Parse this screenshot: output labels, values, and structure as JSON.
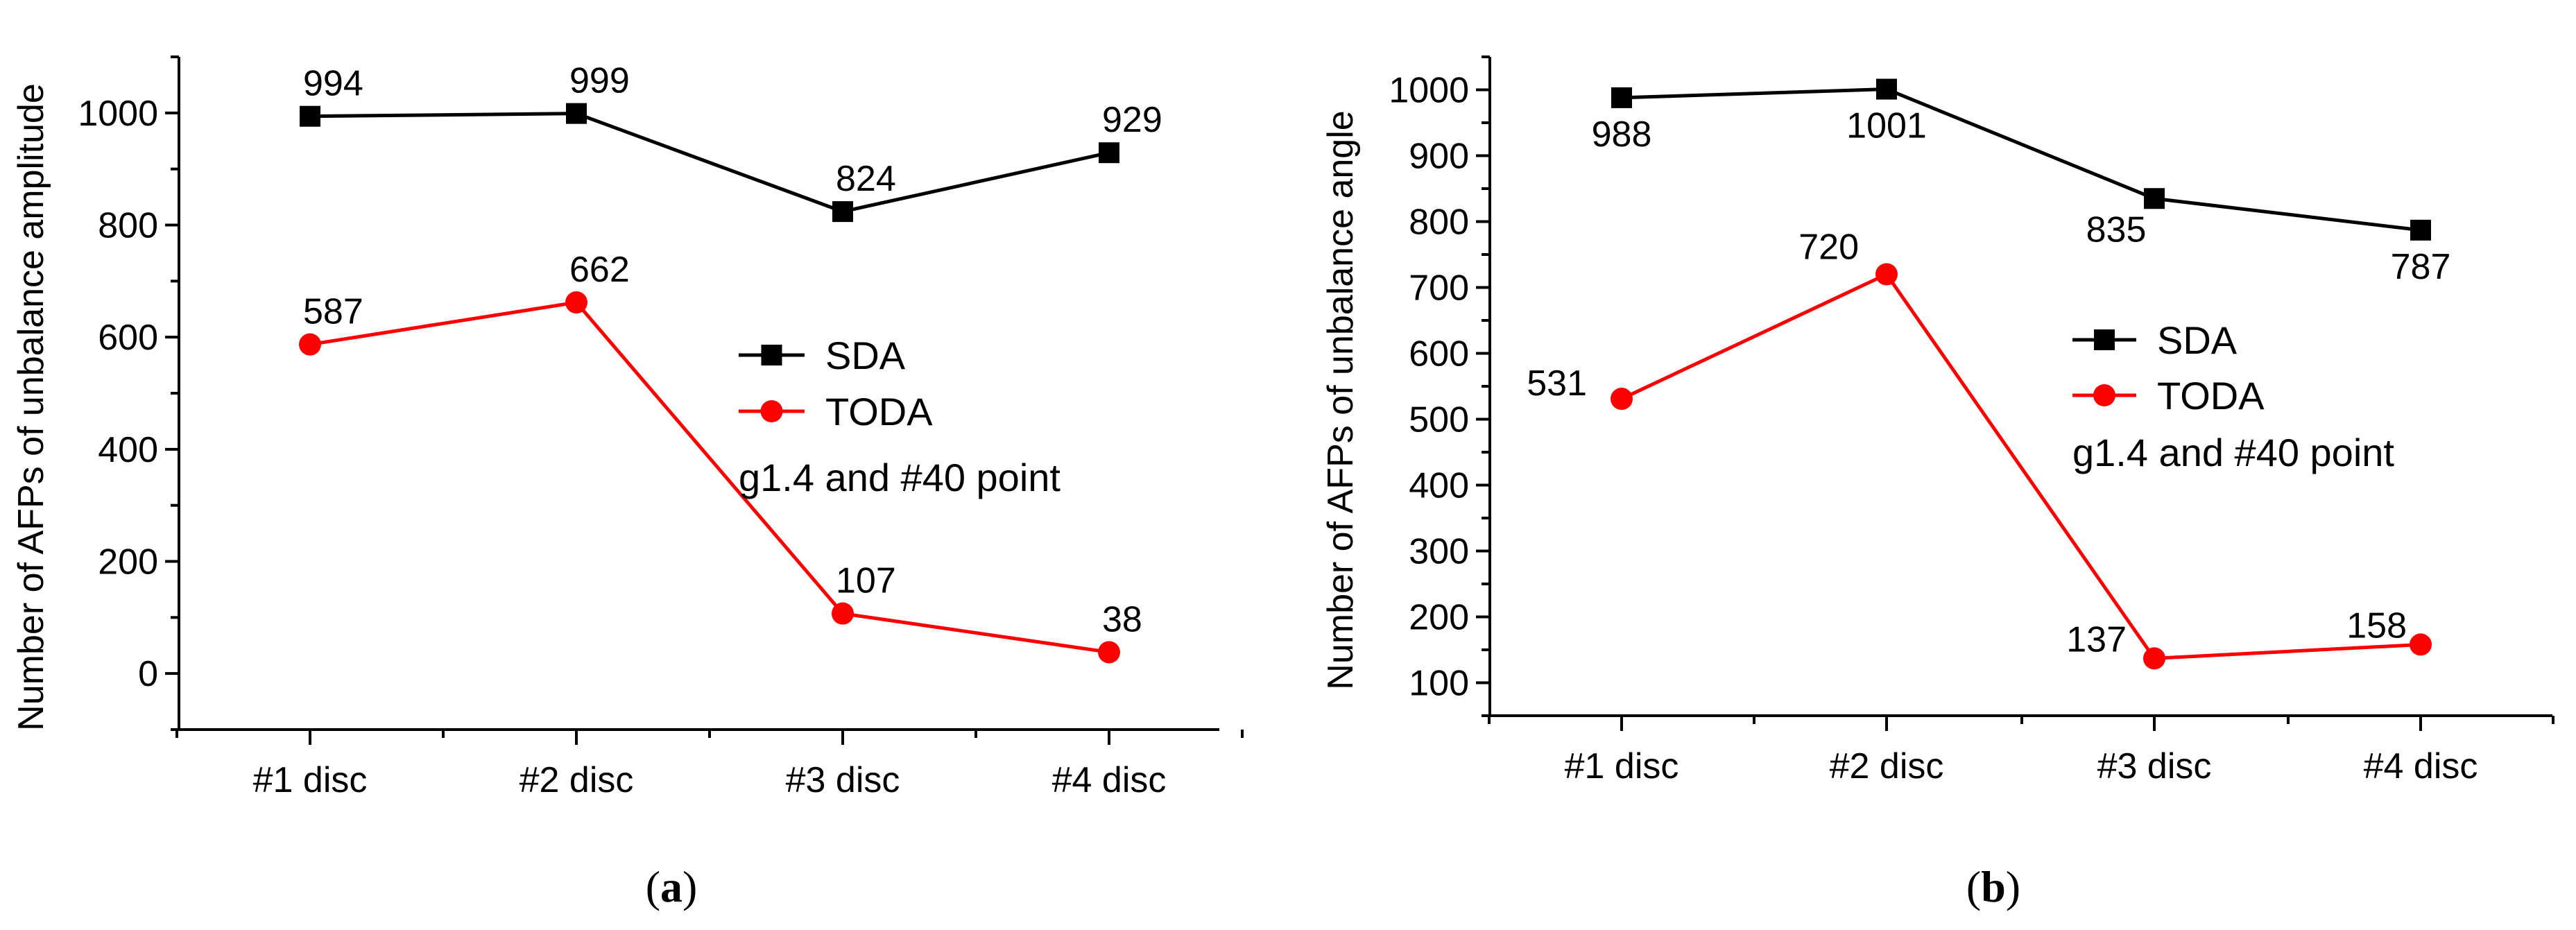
{
  "chart_data": [
    {
      "type": "line",
      "panel_label_prefix": "(",
      "panel_label_letter": "a",
      "panel_label_suffix": ")",
      "categories": [
        "#1 disc",
        "#2 disc",
        "#3 disc",
        "#4 disc"
      ],
      "ylabel": "Number of AFPs of unbalance amplitude",
      "xlabel": "",
      "ylim": [
        -100,
        1100
      ],
      "yticks": [
        0,
        200,
        400,
        600,
        800,
        1000
      ],
      "legend_note": "g1.4 and #40 point",
      "legend_position": "center-right",
      "series": [
        {
          "name": "SDA",
          "color": "#000000",
          "marker": "square",
          "values": [
            994,
            999,
            824,
            929
          ],
          "labels": [
            "994",
            "999",
            "824",
            "929"
          ]
        },
        {
          "name": "TODA",
          "color": "#ff0000",
          "marker": "circle",
          "values": [
            587,
            662,
            107,
            38
          ],
          "labels": [
            "587",
            "662",
            "107",
            "38"
          ]
        }
      ]
    },
    {
      "type": "line",
      "panel_label_prefix": "(",
      "panel_label_letter": "b",
      "panel_label_suffix": ")",
      "categories": [
        "#1 disc",
        "#2 disc",
        "#3 disc",
        "#4 disc"
      ],
      "ylabel": "Number of AFPs of unbalance angle",
      "xlabel": "",
      "ylim": [
        50,
        1050
      ],
      "yticks": [
        100,
        200,
        300,
        400,
        500,
        600,
        700,
        800,
        900,
        1000
      ],
      "legend_note": "g1.4 and #40 point",
      "legend_position": "center-right",
      "series": [
        {
          "name": "SDA",
          "color": "#000000",
          "marker": "square",
          "values": [
            988,
            1001,
            835,
            787
          ],
          "labels": [
            "988",
            "1001",
            "835",
            "787"
          ]
        },
        {
          "name": "TODA",
          "color": "#ff0000",
          "marker": "circle",
          "values": [
            531,
            720,
            137,
            158
          ],
          "labels": [
            "531",
            "720",
            "137",
            "158"
          ]
        }
      ]
    }
  ]
}
